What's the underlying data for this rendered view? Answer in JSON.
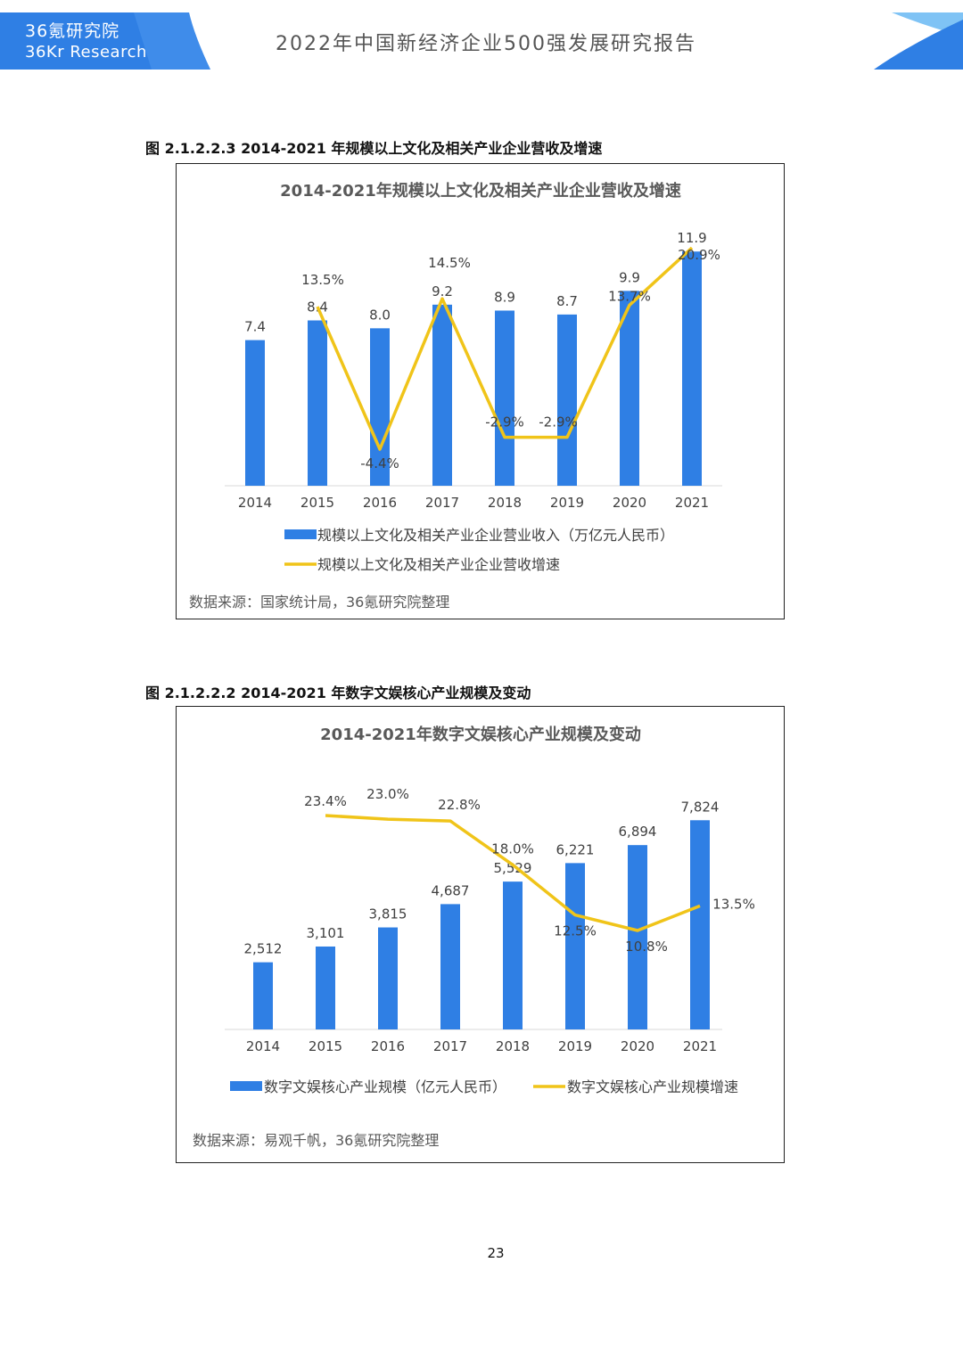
{
  "header": {
    "brand_cn": "36氪研究院",
    "brand_en": "36Kr Research",
    "doc_title": "2022年中国新经济企业500强发展研究报告",
    "accent_color": "#2f7fe4"
  },
  "figures": [
    {
      "caption": "图 2.1.2.2.3 2014-2021 年规模以上文化及相关产业企业营收及增速",
      "source": "数据来源：国家统计局，36氪研究院整理"
    },
    {
      "caption": "图 2.1.2.2.2 2014-2021 年数字文娱核心产业规模及变动",
      "source": "数据来源：易观千帆，36氪研究院整理"
    }
  ],
  "chart_data": [
    {
      "type": "bar",
      "title": "2014-2021年规模以上文化及相关产业企业营收及增速",
      "categories": [
        "2014",
        "2015",
        "2016",
        "2017",
        "2018",
        "2019",
        "2020",
        "2021"
      ],
      "series": [
        {
          "name": "规模以上文化及相关产业企业营业收入（万亿元人民币）",
          "kind": "bar",
          "color": "#2f7fe4",
          "values": [
            7.4,
            8.4,
            8.0,
            9.2,
            8.9,
            8.7,
            9.9,
            11.9
          ],
          "labels": [
            "7.4",
            "8.4",
            "8.0",
            "9.2",
            "8.9",
            "8.7",
            "9.9",
            "11.9"
          ]
        },
        {
          "name": "规模以上文化及相关产业企业营收增速",
          "kind": "line",
          "color": "#f0c419",
          "values": [
            null,
            13.5,
            -4.4,
            14.5,
            -2.9,
            -2.9,
            13.7,
            20.9
          ],
          "labels": [
            "",
            "13.5%",
            "-4.4%",
            "14.5%",
            "-2.9%",
            "-2.9%",
            "13.7%",
            "20.9%"
          ]
        }
      ],
      "legend": "bottom",
      "grid": false
    },
    {
      "type": "bar",
      "title": "2014-2021年数字文娱核心产业规模及变动",
      "categories": [
        "2014",
        "2015",
        "2016",
        "2017",
        "2018",
        "2019",
        "2020",
        "2021"
      ],
      "series": [
        {
          "name": "数字文娱核心产业规模（亿元人民币）",
          "kind": "bar",
          "color": "#2f7fe4",
          "values": [
            2512,
            3101,
            3815,
            4687,
            5529,
            6221,
            6894,
            7824
          ],
          "labels": [
            "2,512",
            "3,101",
            "3,815",
            "4,687",
            "5,529",
            "6,221",
            "6,894",
            "7,824"
          ]
        },
        {
          "name": "数字文娱核心产业规模增速",
          "kind": "line",
          "color": "#f0c419",
          "values": [
            null,
            23.4,
            23.0,
            22.8,
            18.0,
            12.5,
            10.8,
            13.5
          ],
          "labels": [
            "",
            "23.4%",
            "23.0%",
            "22.8%",
            "18.0%",
            "12.5%",
            "10.8%",
            "13.5%"
          ]
        }
      ],
      "legend": "bottom",
      "grid": false
    }
  ],
  "page_number": "23"
}
